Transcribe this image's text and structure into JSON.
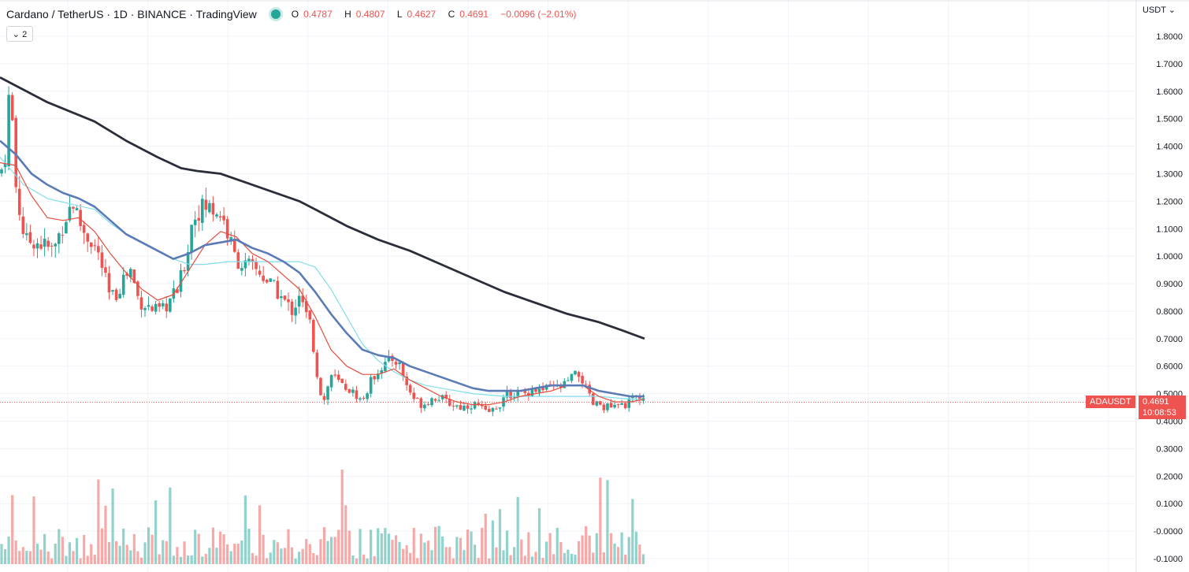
{
  "legend": {
    "symbol": "Cardano / TetherUS · 1D · BINANCE · TradingView",
    "ohlc": {
      "open_label": "O",
      "open": "0.4787",
      "high_label": "H",
      "high": "0.4807",
      "low_label": "L",
      "low": "0.4627",
      "close_label": "C",
      "close": "0.4691",
      "change": "−0.0096 (−2.01%)"
    },
    "collapse_label": "⌄ 2"
  },
  "currency_button": "USDT ⌄",
  "last_price": {
    "symbol_tag": "ADAUSDT",
    "price": "0.4691",
    "countdown": "10:08:53",
    "color": "#ef5350"
  },
  "colors": {
    "up": "#26a69a",
    "down": "#ef5350",
    "ma_200": "#2a2e39",
    "ma_50": "#5b7bb7",
    "ma_20": "#e74c3c",
    "ma_cyan": "#80deea"
  },
  "chart_data": {
    "type": "candlestick",
    "grid": true,
    "y_axis": {
      "ticks": [
        "1.8000",
        "1.7000",
        "1.6000",
        "1.5000",
        "1.4000",
        "1.3000",
        "1.2000",
        "1.1000",
        "1.0000",
        "0.9000",
        "0.8000",
        "0.7000",
        "0.6000",
        "0.5000",
        "0.4000",
        "0.3000",
        "0.2000",
        "0.1000",
        "-0.0000",
        "-0.1000"
      ],
      "ylim": [
        -0.12,
        1.85
      ]
    },
    "price_path": [
      [
        0,
        1.3
      ],
      [
        6,
        1.35
      ],
      [
        10,
        1.55
      ],
      [
        14,
        1.62
      ],
      [
        18,
        1.3
      ],
      [
        24,
        1.18
      ],
      [
        32,
        1.05
      ],
      [
        42,
        1.06
      ],
      [
        55,
        1.04
      ],
      [
        68,
        1.02
      ],
      [
        80,
        1.12
      ],
      [
        92,
        1.2
      ],
      [
        100,
        1.13
      ],
      [
        108,
        1.08
      ],
      [
        118,
        1.05
      ],
      [
        128,
        0.98
      ],
      [
        138,
        0.86
      ],
      [
        146,
        0.85
      ],
      [
        156,
        0.92
      ],
      [
        166,
        0.95
      ],
      [
        176,
        0.84
      ],
      [
        186,
        0.82
      ],
      [
        196,
        0.8
      ],
      [
        206,
        0.8
      ],
      [
        216,
        0.84
      ],
      [
        226,
        0.88
      ],
      [
        236,
        0.99
      ],
      [
        244,
        1.13
      ],
      [
        252,
        1.17
      ],
      [
        262,
        1.18
      ],
      [
        272,
        1.17
      ],
      [
        282,
        1.15
      ],
      [
        290,
        1.07
      ],
      [
        298,
        1.0
      ],
      [
        306,
        0.97
      ],
      [
        318,
        0.96
      ],
      [
        330,
        0.94
      ],
      [
        342,
        0.9
      ],
      [
        352,
        0.87
      ],
      [
        362,
        0.83
      ],
      [
        372,
        0.8
      ],
      [
        380,
        0.87
      ],
      [
        386,
        0.8
      ],
      [
        394,
        0.75
      ],
      [
        402,
        0.58
      ],
      [
        410,
        0.46
      ],
      [
        420,
        0.57
      ],
      [
        430,
        0.54
      ],
      [
        440,
        0.52
      ],
      [
        450,
        0.5
      ],
      [
        460,
        0.47
      ],
      [
        470,
        0.54
      ],
      [
        480,
        0.59
      ],
      [
        490,
        0.61
      ],
      [
        500,
        0.63
      ],
      [
        508,
        0.6
      ],
      [
        516,
        0.53
      ],
      [
        526,
        0.48
      ],
      [
        536,
        0.46
      ],
      [
        546,
        0.48
      ],
      [
        556,
        0.49
      ],
      [
        566,
        0.47
      ],
      [
        576,
        0.46
      ],
      [
        586,
        0.45
      ],
      [
        596,
        0.46
      ],
      [
        606,
        0.46
      ],
      [
        616,
        0.43
      ],
      [
        626,
        0.44
      ],
      [
        636,
        0.47
      ],
      [
        646,
        0.5
      ],
      [
        656,
        0.5
      ],
      [
        666,
        0.5
      ],
      [
        676,
        0.52
      ],
      [
        686,
        0.51
      ],
      [
        696,
        0.52
      ],
      [
        706,
        0.52
      ],
      [
        716,
        0.53
      ],
      [
        726,
        0.56
      ],
      [
        736,
        0.57
      ],
      [
        746,
        0.5
      ],
      [
        752,
        0.46
      ],
      [
        762,
        0.46
      ],
      [
        772,
        0.45
      ],
      [
        782,
        0.45
      ],
      [
        792,
        0.46
      ],
      [
        800,
        0.47
      ],
      [
        808,
        0.49
      ],
      [
        818,
        0.47
      ]
    ],
    "ma_200": [
      [
        0,
        1.65
      ],
      [
        20,
        1.62
      ],
      [
        60,
        1.56
      ],
      [
        120,
        1.49
      ],
      [
        160,
        1.42
      ],
      [
        200,
        1.36
      ],
      [
        230,
        1.32
      ],
      [
        250,
        1.31
      ],
      [
        280,
        1.3
      ],
      [
        310,
        1.27
      ],
      [
        350,
        1.23
      ],
      [
        380,
        1.2
      ],
      [
        400,
        1.17
      ],
      [
        440,
        1.11
      ],
      [
        480,
        1.06
      ],
      [
        520,
        1.02
      ],
      [
        560,
        0.97
      ],
      [
        600,
        0.92
      ],
      [
        640,
        0.87
      ],
      [
        680,
        0.83
      ],
      [
        720,
        0.79
      ],
      [
        760,
        0.76
      ],
      [
        790,
        0.73
      ],
      [
        818,
        0.7
      ]
    ],
    "ma_50": [
      [
        0,
        1.42
      ],
      [
        20,
        1.37
      ],
      [
        40,
        1.3
      ],
      [
        60,
        1.26
      ],
      [
        80,
        1.23
      ],
      [
        100,
        1.21
      ],
      [
        120,
        1.18
      ],
      [
        140,
        1.13
      ],
      [
        160,
        1.08
      ],
      [
        180,
        1.05
      ],
      [
        200,
        1.02
      ],
      [
        220,
        0.99
      ],
      [
        240,
        1.01
      ],
      [
        260,
        1.04
      ],
      [
        280,
        1.05
      ],
      [
        300,
        1.06
      ],
      [
        320,
        1.03
      ],
      [
        340,
        1.01
      ],
      [
        360,
        0.98
      ],
      [
        380,
        0.94
      ],
      [
        400,
        0.87
      ],
      [
        420,
        0.79
      ],
      [
        440,
        0.72
      ],
      [
        460,
        0.66
      ],
      [
        480,
        0.64
      ],
      [
        500,
        0.63
      ],
      [
        520,
        0.6
      ],
      [
        540,
        0.58
      ],
      [
        560,
        0.56
      ],
      [
        580,
        0.54
      ],
      [
        600,
        0.52
      ],
      [
        620,
        0.51
      ],
      [
        640,
        0.51
      ],
      [
        660,
        0.51
      ],
      [
        680,
        0.52
      ],
      [
        700,
        0.53
      ],
      [
        720,
        0.53
      ],
      [
        740,
        0.53
      ],
      [
        760,
        0.51
      ],
      [
        780,
        0.5
      ],
      [
        800,
        0.49
      ],
      [
        818,
        0.49
      ]
    ],
    "ma_20": [
      [
        0,
        1.34
      ],
      [
        20,
        1.33
      ],
      [
        40,
        1.22
      ],
      [
        60,
        1.14
      ],
      [
        80,
        1.13
      ],
      [
        100,
        1.14
      ],
      [
        120,
        1.09
      ],
      [
        140,
        1.01
      ],
      [
        160,
        0.94
      ],
      [
        180,
        0.88
      ],
      [
        200,
        0.84
      ],
      [
        220,
        0.86
      ],
      [
        240,
        0.95
      ],
      [
        260,
        1.04
      ],
      [
        280,
        1.09
      ],
      [
        300,
        1.07
      ],
      [
        320,
        1.01
      ],
      [
        340,
        0.98
      ],
      [
        360,
        0.93
      ],
      [
        380,
        0.88
      ],
      [
        400,
        0.78
      ],
      [
        420,
        0.66
      ],
      [
        440,
        0.6
      ],
      [
        460,
        0.57
      ],
      [
        480,
        0.57
      ],
      [
        500,
        0.59
      ],
      [
        520,
        0.55
      ],
      [
        540,
        0.52
      ],
      [
        560,
        0.49
      ],
      [
        580,
        0.47
      ],
      [
        600,
        0.46
      ],
      [
        620,
        0.46
      ],
      [
        640,
        0.47
      ],
      [
        660,
        0.49
      ],
      [
        680,
        0.5
      ],
      [
        700,
        0.51
      ],
      [
        720,
        0.53
      ],
      [
        740,
        0.53
      ],
      [
        760,
        0.49
      ],
      [
        780,
        0.47
      ],
      [
        800,
        0.47
      ],
      [
        818,
        0.48
      ]
    ],
    "ma_cyan": [
      [
        0,
        1.36
      ],
      [
        30,
        1.26
      ],
      [
        60,
        1.21
      ],
      [
        90,
        1.19
      ],
      [
        120,
        1.17
      ],
      [
        140,
        1.12
      ],
      [
        160,
        1.08
      ],
      [
        180,
        1.05
      ],
      [
        200,
        1.02
      ],
      [
        220,
        0.99
      ],
      [
        240,
        0.97
      ],
      [
        260,
        0.97
      ],
      [
        290,
        0.98
      ],
      [
        320,
        0.98
      ],
      [
        350,
        0.98
      ],
      [
        380,
        0.98
      ],
      [
        400,
        0.96
      ],
      [
        420,
        0.88
      ],
      [
        440,
        0.78
      ],
      [
        460,
        0.68
      ],
      [
        480,
        0.62
      ],
      [
        500,
        0.58
      ],
      [
        520,
        0.55
      ],
      [
        540,
        0.53
      ],
      [
        560,
        0.52
      ],
      [
        600,
        0.5
      ],
      [
        640,
        0.49
      ],
      [
        680,
        0.49
      ],
      [
        720,
        0.49
      ],
      [
        760,
        0.49
      ],
      [
        800,
        0.48
      ],
      [
        818,
        0.48
      ]
    ],
    "last_close": 0.4691,
    "volume_range": [
      -0.12,
      0.4
    ]
  }
}
